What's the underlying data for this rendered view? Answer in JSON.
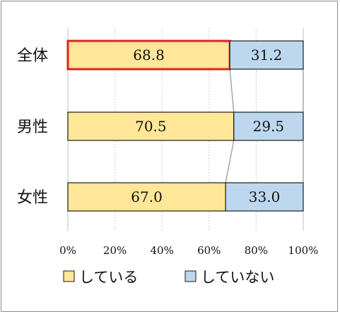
{
  "chart_data": {
    "type": "bar",
    "orientation": "horizontal",
    "stacked": true,
    "percent_scale": true,
    "categories": [
      "全体",
      "男性",
      "女性"
    ],
    "series": [
      {
        "name": "している",
        "values": [
          68.8,
          70.5,
          67.0
        ],
        "color": "#FFE699"
      },
      {
        "name": "していない",
        "values": [
          31.2,
          29.5,
          33.0
        ],
        "color": "#BDD7EE"
      }
    ],
    "x_ticks": [
      "0%",
      "20%",
      "40%",
      "60%",
      "80%",
      "100%"
    ],
    "xlim": [
      0,
      100
    ],
    "grid": true,
    "legend_position": "bottom",
    "highlight": {
      "category": "全体",
      "series": "している",
      "color": "#E02020"
    },
    "series_lines": true
  }
}
